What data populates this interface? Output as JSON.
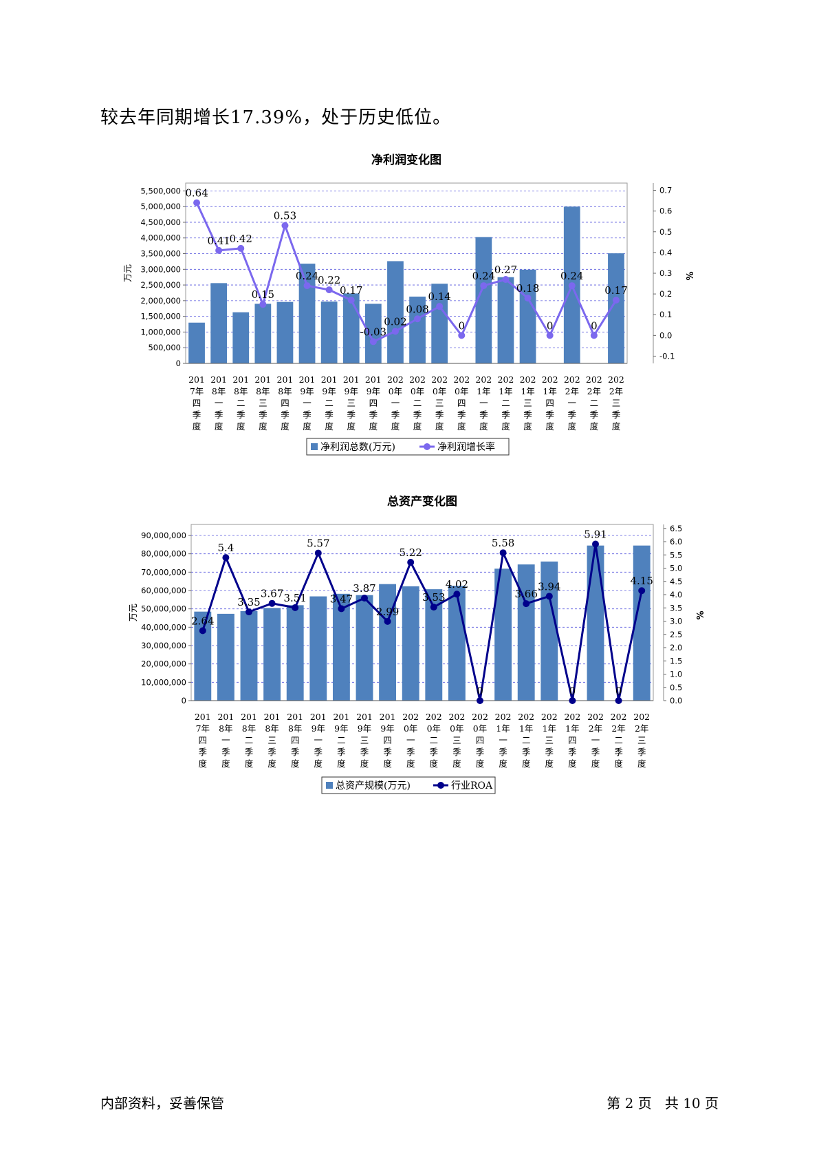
{
  "intro_text": "较去年同期增长17.39%，处于历史低位。",
  "footer": {
    "left": "内部资料，妥善保管",
    "page_prefix": "第",
    "page_number": "2",
    "page_unit": "页",
    "total_prefix": "共",
    "total_pages": "10",
    "total_unit": "页"
  },
  "chart_data": [
    {
      "type": "bar",
      "title": "净利润变化图",
      "categories": [
        "2017年四季度",
        "2018年一季度",
        "2018年二季度",
        "2018年三季度",
        "2018年四季度",
        "2019年一季度",
        "2019年二季度",
        "2019年三季度",
        "2019年四季度",
        "2020年一季度",
        "2020年二季度",
        "2020年三季度",
        "2020年四季度",
        "2021年一季度",
        "2021年二季度",
        "2021年三季度",
        "2021年四季度",
        "2022年一季度",
        "2022年二季度",
        "2022年三季度"
      ],
      "ylabel": "万元",
      "y2label": "%",
      "ylim": [
        0,
        5750000
      ],
      "y2lim": [
        -0.135,
        0.735
      ],
      "yticks": [
        0,
        500000,
        1000000,
        1500000,
        2000000,
        2500000,
        3000000,
        3500000,
        4000000,
        4500000,
        5000000,
        5500000
      ],
      "ytick_labels": [
        "0",
        "500,000",
        "1,000,000",
        "1,500,000",
        "2,000,000",
        "2,500,000",
        "3,000,000",
        "3,500,000",
        "4,000,000",
        "4,500,000",
        "5,000,000",
        "5,500,000"
      ],
      "y2ticks": [
        -0.1,
        0,
        0.1,
        0.2,
        0.3,
        0.4,
        0.5,
        0.6,
        0.7
      ],
      "y2tick_labels": [
        "-0.1",
        "0.0",
        "0.1",
        "0.2",
        "0.3",
        "0.4",
        "0.5",
        "0.6",
        "0.7"
      ],
      "series": [
        {
          "name": "净利润总数(万元)",
          "kind": "bar",
          "values": [
            1300000,
            2560000,
            1630000,
            1900000,
            1960000,
            3180000,
            1970000,
            2230000,
            1900000,
            3260000,
            2130000,
            2540000,
            0,
            4030000,
            2750000,
            2990000,
            0,
            5000000,
            0,
            3510000
          ]
        },
        {
          "name": "净利润增长率",
          "kind": "line",
          "values": [
            0.64,
            0.41,
            0.42,
            0.15,
            0.53,
            0.24,
            0.22,
            0.17,
            -0.03,
            0.02,
            0.08,
            0.14,
            0,
            0.24,
            0.27,
            0.18,
            0,
            0.24,
            0,
            0.17
          ],
          "labels": [
            "0.64",
            "0.41",
            "0.42",
            "0.15",
            "0.53",
            "0.24",
            "0.22",
            "0.17",
            "-0.03",
            "0.02",
            "0.08",
            "0.14",
            "0",
            "0.24",
            "0.27",
            "0.18",
            "0",
            "0.24",
            "0",
            "0.17"
          ]
        }
      ],
      "colors": {
        "bar": "#4f81bd",
        "line": "#7b68ee"
      },
      "legend": "bottom",
      "grid": true
    },
    {
      "type": "bar",
      "title": "总资产变化图",
      "categories": [
        "2017年四季度",
        "2018年一季度",
        "2018年二季度",
        "2018年三季度",
        "2018年四季度",
        "2019年一季度",
        "2019年二季度",
        "2019年三季度",
        "2019年四季度",
        "2020年一季度",
        "2020年二季度",
        "2020年三季度",
        "2020年四季度",
        "2021年一季度",
        "2021年二季度",
        "2021年三季度",
        "2021年四季度",
        "2022年一季度",
        "2022年二季度",
        "2022年三季度"
      ],
      "ylabel": "万元",
      "y2label": "%",
      "ylim": [
        0,
        96000000
      ],
      "y2lim": [
        0,
        6.65
      ],
      "yticks": [
        0,
        10000000,
        20000000,
        30000000,
        40000000,
        50000000,
        60000000,
        70000000,
        80000000,
        90000000
      ],
      "ytick_labels": [
        "0",
        "10,000,000",
        "20,000,000",
        "30,000,000",
        "40,000,000",
        "50,000,000",
        "60,000,000",
        "70,000,000",
        "80,000,000",
        "90,000,000"
      ],
      "y2ticks": [
        0,
        0.5,
        1,
        1.5,
        2,
        2.5,
        3,
        3.5,
        4,
        4.5,
        5,
        5.5,
        6,
        6.5
      ],
      "y2tick_labels": [
        "0.0",
        "0.5",
        "1.0",
        "1.5",
        "2.0",
        "2.5",
        "3.0",
        "3.5",
        "4.0",
        "4.5",
        "5.0",
        "5.5",
        "6.0",
        "6.5"
      ],
      "series": [
        {
          "name": "总资产规模(万元)",
          "kind": "bar",
          "values": [
            48500000,
            47300000,
            48800000,
            50500000,
            52000000,
            56800000,
            58200000,
            57500000,
            63500000,
            62300000,
            60700000,
            62600000,
            0,
            71900000,
            74200000,
            75800000,
            0,
            84500000,
            0,
            84500000
          ]
        },
        {
          "name": "行业ROA",
          "kind": "line",
          "values": [
            2.64,
            5.4,
            3.35,
            3.67,
            3.51,
            5.57,
            3.47,
            3.87,
            2.99,
            5.22,
            3.53,
            4.02,
            0,
            5.58,
            3.66,
            3.94,
            0,
            5.91,
            0,
            4.15
          ],
          "labels": [
            "2.64",
            "5.4",
            "3.35",
            "3.67",
            "3.51",
            "5.57",
            "3.47",
            "3.87",
            "2.99",
            "5.22",
            "3.53",
            "4.02",
            "0",
            "5.58",
            "3.66",
            "3.94",
            "0",
            "5.91",
            "0",
            "4.15"
          ]
        }
      ],
      "colors": {
        "bar": "#4f81bd",
        "line": "#00008b"
      },
      "legend": "bottom",
      "grid": true
    }
  ]
}
